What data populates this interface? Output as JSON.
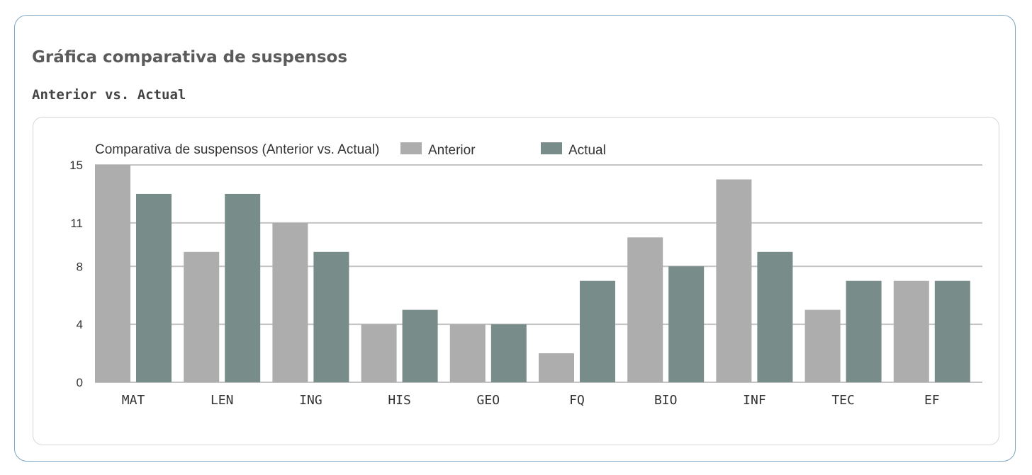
{
  "card": {
    "title": "Gráfica comparativa de suspensos",
    "subtitle": "Anterior vs. Actual"
  },
  "chart_data": {
    "type": "bar",
    "title": "Comparativa de suspensos (Anterior vs. Actual)",
    "categories": [
      "MAT",
      "LEN",
      "ING",
      "HIS",
      "GEO",
      "FQ",
      "BIO",
      "INF",
      "TEC",
      "EF"
    ],
    "series": [
      {
        "name": "Anterior",
        "color": "#adadad",
        "values": [
          15,
          9,
          11,
          4,
          4,
          2,
          10,
          14,
          5,
          7
        ]
      },
      {
        "name": "Actual",
        "color": "#788c8a",
        "values": [
          13,
          13,
          9,
          5,
          4,
          7,
          8,
          9,
          7,
          7
        ]
      }
    ],
    "yticks": [
      0,
      4,
      8,
      11,
      15
    ],
    "ylim": [
      0,
      15
    ],
    "xlabel": "",
    "ylabel": "",
    "grid": true,
    "legend": "top"
  }
}
